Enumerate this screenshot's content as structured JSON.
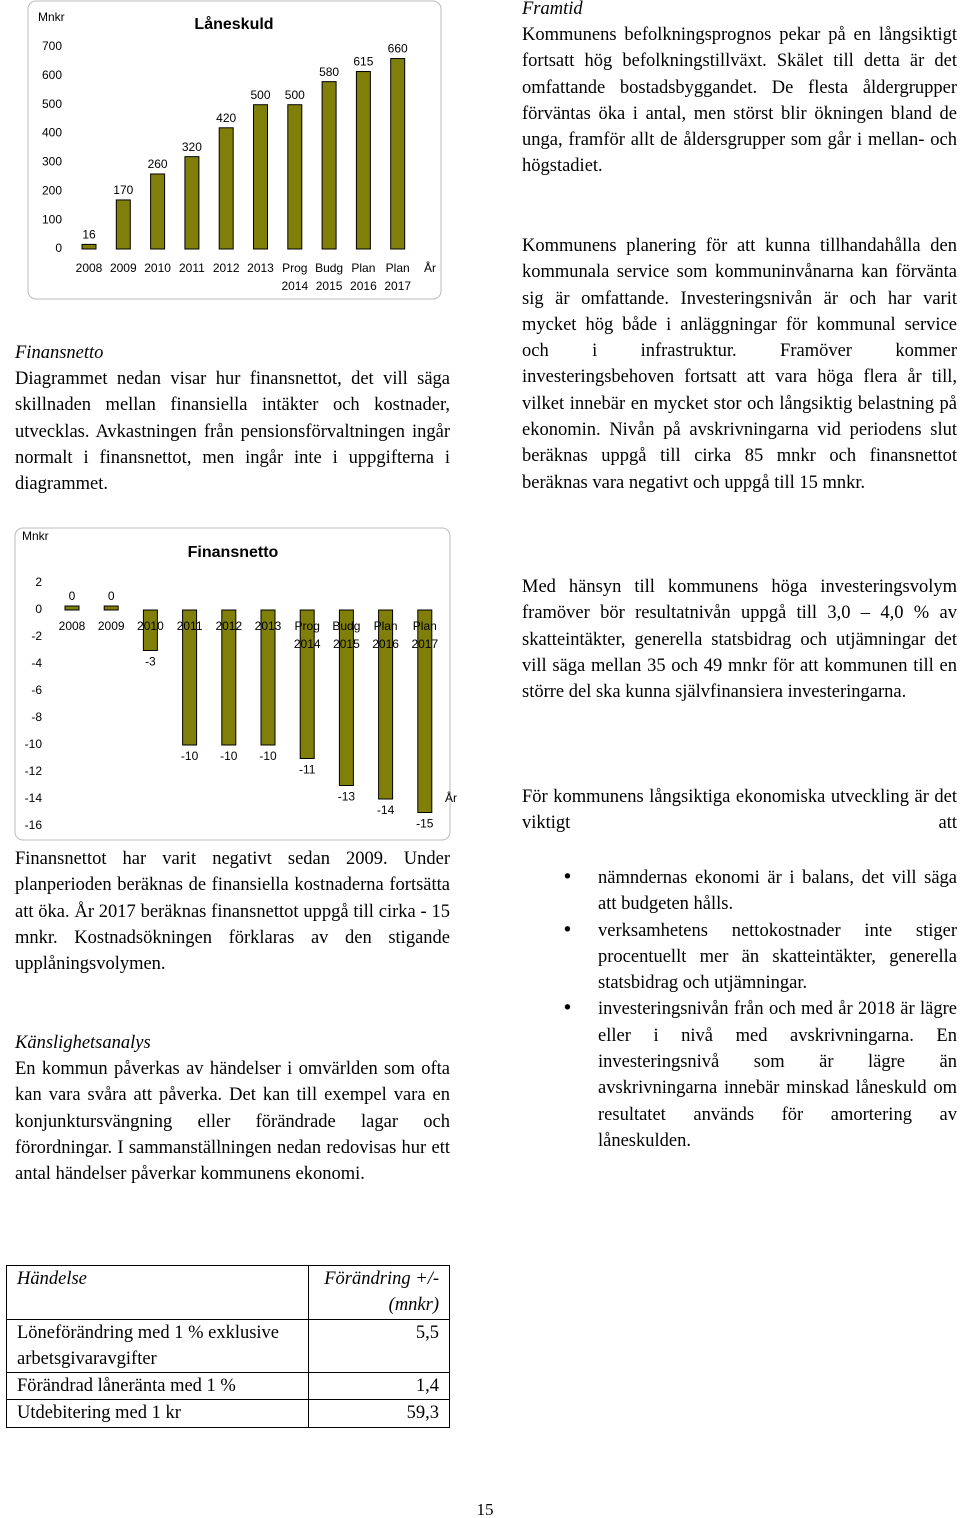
{
  "chart_data": [
    {
      "type": "bar",
      "title": "Låneskuld",
      "y_label": "Mnkr",
      "x_label": "År",
      "categories": [
        "2008",
        "2009",
        "2010",
        "2011",
        "2012",
        "2013",
        "Prog 2014",
        "Budg 2015",
        "Plan 2016",
        "Plan 2017"
      ],
      "values": [
        16,
        170,
        260,
        320,
        420,
        500,
        500,
        580,
        615,
        660
      ],
      "color": "#7f7f0a",
      "ylim": [
        0,
        700
      ],
      "yticks": [
        0,
        100,
        200,
        300,
        400,
        500,
        600,
        700
      ]
    },
    {
      "type": "bar",
      "title": "Finansnetto",
      "y_label": "Mnkr",
      "x_label": "År",
      "categories": [
        "2008",
        "2009",
        "2010",
        "2011",
        "2012",
        "2013",
        "Prog 2014",
        "Budg 2015",
        "Plan 2016",
        "Plan 2017"
      ],
      "values": [
        0,
        0,
        -3,
        -10,
        -10,
        -10,
        -11,
        -13,
        -14,
        -15
      ],
      "color": "#7f7f0a",
      "ylim": [
        -16,
        2
      ],
      "yticks": [
        2,
        0,
        -2,
        -4,
        -6,
        -8,
        -10,
        -12,
        -14,
        -16
      ]
    }
  ],
  "right_column": {
    "heading": "Framtid",
    "paragraphs": [
      "Kommunens befolkningsprognos pekar på en långsiktigt fortsatt hög befolkningstillväxt. Skälet till detta är det omfattande bostads­byggandet. De flesta åldergrupper förväntas öka i antal, men störst blir ökningen bland de unga, framför allt de åldersgrupper som går i mellan- och högstadiet.",
      "Kommunens planering för att kunna tillhandahålla den kommunala service som kommuninvånarna kan förvänta sig är omfattande. Investeringsnivån är och har varit mycket hög både i anläggningar för kommunal service och i infrastruktur. Framöver kommer investeringsbehoven fortsatt att vara höga flera år till, vilket innebär en mycket stor och långsiktig belastning på ekonomin. Nivån på avskrivningarna vid periodens slut beräknas uppgå till cirka 85 mnkr och finansnettot beräknas vara negativt och uppgå till 15 mnkr.",
      "Med hänsyn till kommunens höga investeringsvolym framöver bör resultatnivån uppgå till 3,0 – 4,0 % av skatteintäkter, generella statsbidrag och utjämningar det vill säga mellan 35 och 49 mnkr för att kommunen till en större del ska kunna självfinansiera investeringarna.",
      "För kommunens långsiktiga ekonomiska utveckling är det viktigt att"
    ],
    "bullets": [
      "nämndernas ekonomi är i balans, det vill säga att budgeten hålls.",
      "verksamhetens nettokostnader inte stiger procentuellt mer än skatte­intäkter, generella statsbidrag och utjämningar.",
      "investeringsnivån från och med år 2018 är lägre eller i nivå med avskrivningarna. En investeringsnivå som är lägre än avskrivningarna innebär minskad låneskuld om resultatet används för amortering av låneskulden."
    ]
  },
  "left_column": {
    "finansnetto": {
      "heading": "Finansnetto",
      "paragraph_before": "Diagrammet nedan visar hur finansnettot, det vill säga skillnaden mellan finansiella intäkter och kostnader, utvecklas. Avkastningen från pensionsförvaltningen ingår normalt i finans­nettot, men ingår inte i uppgifterna i diagrammet.",
      "paragraph_after": "Finansnettot har varit negativt sedan 2009. Under planperioden beräknas de finansiella kostnaderna fortsätta att öka. År 2017 beräknas finansnettot uppgå till cirka - 15 mnkr. Kostnadsökningen förklaras av den stigande upplåningsvolymen."
    },
    "kanslighetsanalys": {
      "heading": "Känslighetsanalys",
      "paragraph": "En kommun påverkas av händelser i omvärlden som ofta kan vara svåra att påverka. Det kan till exempel vara en konjunktur­svängning eller förändrade lagar och förordningar. I sammanställningen nedan redovisas hur ett antal händelser påverkar kommunens ekonomi."
    }
  },
  "table": {
    "header": [
      "Händelse",
      "Förändring +/- (mnkr)"
    ],
    "rows": [
      [
        "Löneförändring med 1 % exklusive arbetsgivaravgifter",
        "5,5"
      ],
      [
        "Förändrad låneränta med 1 %",
        "1,4"
      ],
      [
        "Utdebitering med 1 kr",
        "59,3"
      ]
    ]
  },
  "page_number": "15"
}
